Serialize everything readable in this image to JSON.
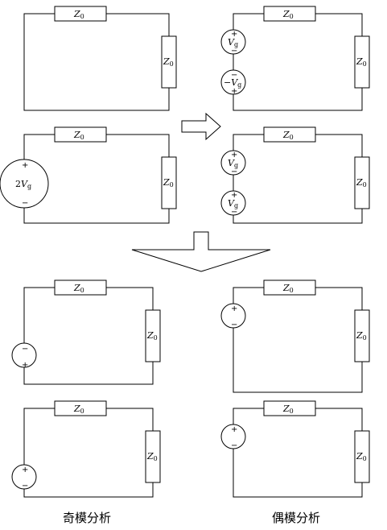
{
  "labels": {
    "Z": "Z",
    "Z_sub": "0",
    "Vg": "V",
    "Vg_sub": "g",
    "neg_Vg_prefix": "−",
    "two_Vg_prefix": "2",
    "plus": "+",
    "minus": "−"
  },
  "captions": {
    "odd": "奇模分析",
    "even": "偶模分析"
  }
}
